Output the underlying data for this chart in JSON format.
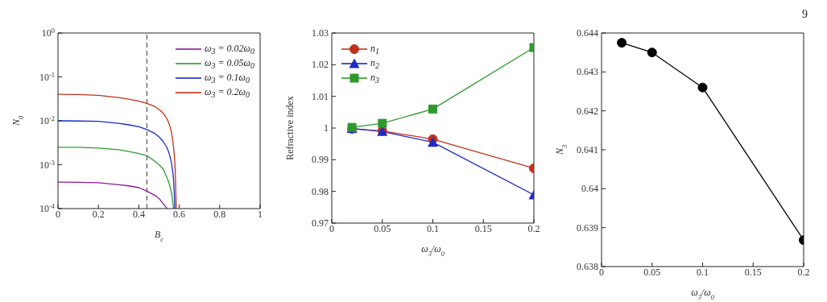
{
  "chart_data": [
    {
      "type": "line",
      "xlabel": "B$_{c}$",
      "ylabel": "N$_{0}$",
      "log": "y",
      "xlim": [
        0,
        1
      ],
      "xticks": [
        0,
        0.2,
        0.4,
        0.6,
        0.8,
        1
      ],
      "ylim": [
        0.0001,
        1
      ],
      "yticks": [
        {
          "value": 0.0001,
          "label": "10$^{-4}$"
        },
        {
          "value": 0.001,
          "label": "10$^{-3}$"
        },
        {
          "value": 0.01,
          "label": "10$^{-2}$"
        },
        {
          "value": 0.1,
          "label": "10$^{-1}$"
        },
        {
          "value": 1,
          "label": "10$^{0}$"
        }
      ],
      "legend": "top right",
      "grid": false,
      "marker": "none",
      "line_style": "solid",
      "ref_lines": [
        {
          "axis": "x",
          "value": 0.44,
          "color": "#555555",
          "line_style": "dashed"
        }
      ],
      "series": [
        {
          "name": "ω$_{3}$ = 0.02ω$_{0}$",
          "color": "#8b1a9a",
          "x": [
            0,
            0.1,
            0.2,
            0.3,
            0.35,
            0.4,
            0.44,
            0.48,
            0.5,
            0.52,
            0.54
          ],
          "values": [
            0.0004,
            0.000398,
            0.00039,
            0.00035,
            0.00033,
            0.0003,
            0.00025,
            0.0002,
            0.00017,
            0.00013,
            0.0001
          ]
        },
        {
          "name": "ω$_{3}$ = 0.05ω$_{0}$",
          "color": "#2e9a2e",
          "x": [
            0,
            0.1,
            0.2,
            0.3,
            0.35,
            0.4,
            0.44,
            0.48,
            0.5,
            0.52,
            0.54,
            0.55,
            0.56,
            0.565,
            0.572
          ],
          "values": [
            0.0025,
            0.00249,
            0.0024,
            0.0022,
            0.002,
            0.0018,
            0.0016,
            0.0012,
            0.001,
            0.0008,
            0.0005,
            0.00037,
            0.00025,
            0.00018,
            0.0001
          ]
        },
        {
          "name": "ω$_{3}$ = 0.1ω$_{0}$",
          "color": "#1c2bc4",
          "x": [
            0,
            0.1,
            0.2,
            0.3,
            0.35,
            0.4,
            0.44,
            0.48,
            0.5,
            0.52,
            0.54,
            0.55,
            0.56,
            0.57,
            0.575,
            0.578
          ],
          "values": [
            0.01,
            0.0099,
            0.0097,
            0.0088,
            0.0081,
            0.0073,
            0.0063,
            0.0051,
            0.0043,
            0.0034,
            0.0024,
            0.0018,
            0.0012,
            0.0006,
            0.00025,
            0.0001
          ]
        },
        {
          "name": "ω$_{3}$ = 0.2ω$_{0}$",
          "color": "#c0301c",
          "x": [
            0,
            0.1,
            0.2,
            0.3,
            0.35,
            0.4,
            0.44,
            0.48,
            0.5,
            0.52,
            0.54,
            0.55,
            0.56,
            0.57,
            0.575,
            0.58,
            0.585
          ],
          "values": [
            0.04,
            0.0398,
            0.038,
            0.034,
            0.031,
            0.028,
            0.025,
            0.021,
            0.018,
            0.015,
            0.011,
            0.0085,
            0.006,
            0.003,
            0.0018,
            0.0008,
            0.0001
          ]
        }
      ]
    },
    {
      "type": "line",
      "xlabel": "ω$_{3}$/ω$_{0}$",
      "ylabel": "Refractive index",
      "xlim": [
        0,
        0.2
      ],
      "xticks": [
        0,
        0.05,
        0.1,
        0.15,
        0.2
      ],
      "ylim": [
        0.97,
        1.03
      ],
      "yticks": [
        0.97,
        0.98,
        0.99,
        1,
        1.01,
        1.02,
        1.03
      ],
      "legend": "top left",
      "grid": false,
      "line_style": "solid",
      "x": [
        0.02,
        0.05,
        0.1,
        0.2
      ],
      "series": [
        {
          "name": "n$_{1}$",
          "color": "#c0301c",
          "marker": "circle",
          "values": [
            0.9997,
            0.9991,
            0.9965,
            0.9873
          ]
        },
        {
          "name": "n$_{2}$",
          "color": "#1c2bc4",
          "marker": "triangle",
          "values": [
            0.9999,
            0.9989,
            0.9955,
            0.9789
          ]
        },
        {
          "name": "n$_{3}$",
          "color": "#2e9a2e",
          "marker": "square",
          "values": [
            1.0002,
            1.0015,
            1.006,
            1.0254
          ]
        }
      ]
    },
    {
      "type": "line",
      "xlabel": "ω$_{3}$/ω$_{0}$",
      "ylabel": "N$_{3}$",
      "xlim": [
        0,
        0.2
      ],
      "xticks": [
        0,
        0.05,
        0.1,
        0.15,
        0.2
      ],
      "ylim": [
        0.638,
        0.644
      ],
      "yticks": [
        0.638,
        0.639,
        0.64,
        0.641,
        0.642,
        0.643,
        0.644
      ],
      "legend": false,
      "grid": false,
      "marker": "circle",
      "line_style": "solid",
      "x": [
        0.02,
        0.05,
        0.1,
        0.2
      ],
      "annotations": [
        "9"
      ],
      "series": [
        {
          "color": "#000000",
          "values": [
            0.64375,
            0.6435,
            0.6426,
            0.63868
          ]
        }
      ]
    }
  ]
}
